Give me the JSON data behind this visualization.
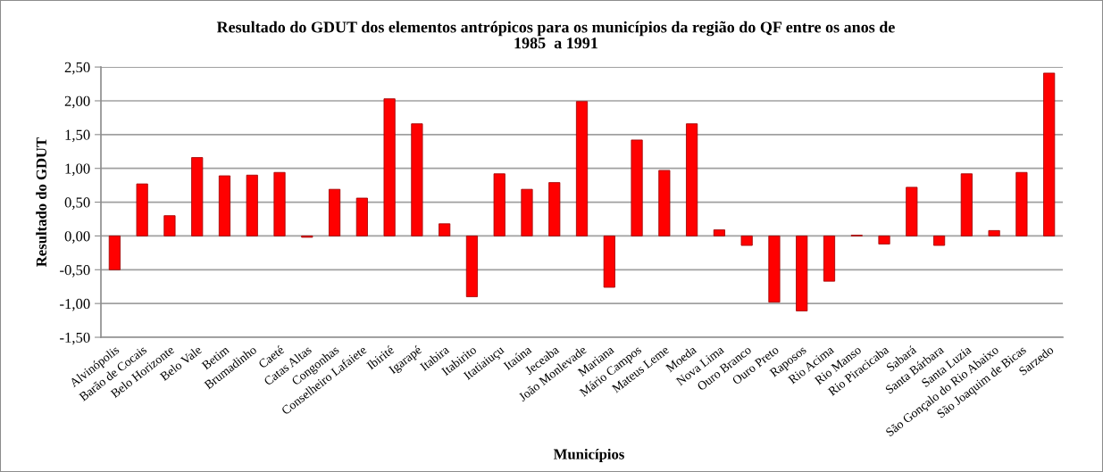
{
  "chart_data": {
    "type": "bar",
    "title": "Resultado do GDUT dos elementos antrópicos para os municípios da região do QF entre os anos de\n1985  a 1991",
    "xlabel": "Municípios",
    "ylabel": "Resultado do GDUT",
    "categories": [
      "Alvinópolis",
      "Barão de Cocais",
      "Belo Horizonte",
      "Belo Vale",
      "Betim",
      "Brumadinho",
      "Caeté",
      "Catas Altas",
      "Congonhas",
      "Conselheiro Lafaiete",
      "Ibirité",
      "Igarapé",
      "Itabira",
      "Itabirito",
      "Itatiaiuçu",
      "Itaúna",
      "Jeceaba",
      "João Monlevade",
      "Mariana",
      "Mário Campos",
      "Mateus Leme",
      "Moeda",
      "Nova Lima",
      "Ouro Branco",
      "Ouro Preto",
      "Raposos",
      "Rio Acima",
      "Rio Manso",
      "Rio Piracicaba",
      "Sabará",
      "Santa Bárbara",
      "Santa Luzia",
      "São Gonçalo do Rio Abaixo",
      "São Joaquim de Bicas",
      "Sarzedo"
    ],
    "values": [
      -0.5,
      0.77,
      0.3,
      1.16,
      0.89,
      0.9,
      0.94,
      -0.02,
      0.69,
      0.56,
      2.03,
      1.66,
      0.18,
      -0.9,
      0.92,
      0.69,
      0.79,
      1.99,
      -0.76,
      1.42,
      0.97,
      1.66,
      0.09,
      -0.14,
      -0.98,
      -1.11,
      -0.67,
      0.01,
      -0.12,
      0.72,
      -0.14,
      0.92,
      0.08,
      0.94,
      2.41
    ],
    "color": "#ff0000",
    "ylim": [
      -1.5,
      2.5
    ],
    "yticks": [
      {
        "value": -1.5,
        "label": "-1,50"
      },
      {
        "value": -1.0,
        "label": "-1,00"
      },
      {
        "value": -0.5,
        "label": "-0,50"
      },
      {
        "value": 0,
        "label": "0,00"
      },
      {
        "value": 0.5,
        "label": "0,50"
      },
      {
        "value": 1.0,
        "label": "1,00"
      },
      {
        "value": 1.5,
        "label": "1,50"
      },
      {
        "value": 2.0,
        "label": "2,00"
      },
      {
        "value": 2.5,
        "label": "2,50"
      }
    ],
    "grid": "y",
    "legend": false
  }
}
